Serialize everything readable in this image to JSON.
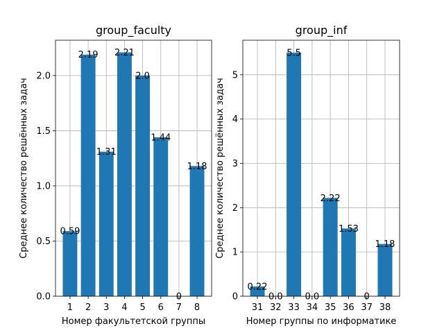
{
  "chart_data": [
    {
      "type": "bar",
      "title": "group_faculty",
      "xlabel": "Номер факультетской группы",
      "ylabel": "Среднее количество решённых задач",
      "categories": [
        "1",
        "2",
        "3",
        "4",
        "5",
        "6",
        "7",
        "8"
      ],
      "values": [
        0.59,
        2.19,
        1.31,
        2.21,
        2.0,
        1.44,
        0,
        1.18
      ],
      "data_labels": [
        "0.59",
        "2.19",
        "1.31",
        "2.21",
        "2.0",
        "1.44",
        "0",
        "1.18"
      ],
      "ylim": [
        0,
        2.32
      ],
      "yticks": [
        0.0,
        0.5,
        1.0,
        1.5,
        2.0
      ],
      "ytick_labels": [
        "0.0",
        "0.5",
        "1.0",
        "1.5",
        "2.0"
      ],
      "bar_color": "#1f77b4",
      "grid": true
    },
    {
      "type": "bar",
      "title": "group_inf",
      "xlabel": "Номер группы по информатике",
      "ylabel": "Среднее количество решённых задач",
      "categories": [
        "31",
        "32",
        "33",
        "34",
        "35",
        "36",
        "37",
        "38"
      ],
      "values": [
        0.22,
        0.0,
        5.5,
        0.0,
        2.22,
        1.53,
        0,
        1.18
      ],
      "data_labels": [
        "0.22",
        "0.0",
        "5.5",
        "0.0",
        "2.22",
        "1.53",
        "0",
        "1.18"
      ],
      "ylim": [
        0,
        5.78
      ],
      "yticks": [
        0,
        1,
        2,
        3,
        4,
        5
      ],
      "ytick_labels": [
        "0",
        "1",
        "2",
        "3",
        "4",
        "5"
      ],
      "bar_color": "#1f77b4",
      "grid": true
    }
  ]
}
